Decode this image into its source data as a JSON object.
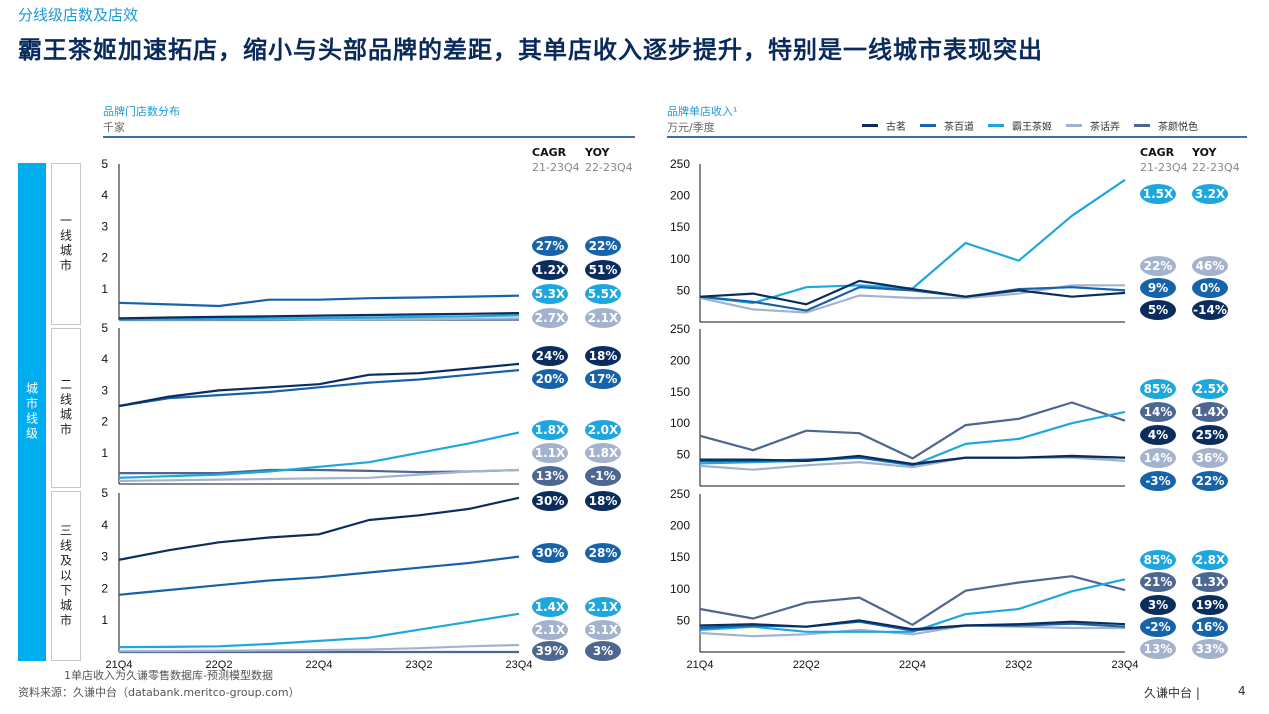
{
  "section_label": "分线级店数及店效",
  "title": "霸王茶姬加速拓店，缩小与头部品牌的差距，其单店收入逐步提升，特别是一线城市表现突出",
  "city_tier_label": "城市线级",
  "tiers": [
    "一线城市",
    "二线城市",
    "三线及以下城市"
  ],
  "left_panel": {
    "title": "品牌门店数分布",
    "unit": "千家"
  },
  "right_panel": {
    "title": "品牌单店收入¹",
    "unit": "万元/季度"
  },
  "metric_headers": {
    "cagr": "CAGR",
    "cagr_period": "21-23Q4",
    "yoy": "YOY",
    "yoy_period": "22-23Q4"
  },
  "legend": [
    {
      "name": "古茗",
      "color": "#0b2d5e"
    },
    {
      "name": "茶百道",
      "color": "#1763aa"
    },
    {
      "name": "霸王茶姬",
      "color": "#1ea7df"
    },
    {
      "name": "茶话弄",
      "color": "#a4b3cd"
    },
    {
      "name": "茶颜悦色",
      "color": "#4d6790"
    }
  ],
  "colors": {
    "accent": "#00aeef",
    "title": "#0a2a5c",
    "rule": "#3e6fa8"
  },
  "footnote": "1单店收入为久谦零售数据库-预测模型数据",
  "source": "资料来源：久谦中台（databank.meritco-group.com）",
  "footer_brand": "久谦中台",
  "page_number": "4",
  "chart_data": [
    {
      "type": "line",
      "panel": "store-count",
      "tier": "一线城市",
      "ylim": [
        0,
        5
      ],
      "yticks": [
        1,
        2,
        3,
        4,
        5
      ],
      "x": [
        "21Q4",
        "22Q1",
        "22Q2",
        "22Q3",
        "22Q4",
        "23Q1",
        "23Q2",
        "23Q3",
        "23Q4"
      ],
      "series": [
        {
          "name": "古茗",
          "values": [
            0.05,
            0.08,
            0.1,
            0.12,
            0.14,
            0.16,
            0.18,
            0.2,
            0.22
          ]
        },
        {
          "name": "茶百道",
          "values": [
            0.55,
            0.5,
            0.45,
            0.65,
            0.65,
            0.7,
            0.72,
            0.75,
            0.78
          ]
        },
        {
          "name": "霸王茶姬",
          "values": [
            0.02,
            0.03,
            0.04,
            0.05,
            0.06,
            0.08,
            0.1,
            0.12,
            0.15
          ]
        },
        {
          "name": "茶话弄",
          "values": [
            0.01,
            0.01,
            0.02,
            0.02,
            0.02,
            0.03,
            0.03,
            0.04,
            0.05
          ]
        },
        {
          "name": "茶颜悦色",
          "values": [
            0.0,
            0.0,
            0.0,
            0.0,
            0.01,
            0.01,
            0.01,
            0.01,
            0.01
          ]
        }
      ],
      "badges": [
        {
          "brand": "茶百道",
          "cagr": "27%",
          "yoy": "22%"
        },
        {
          "brand": "古茗",
          "cagr": "1.2X",
          "yoy": "51%"
        },
        {
          "brand": "霸王茶姬",
          "cagr": "5.3X",
          "yoy": "5.5X"
        },
        {
          "brand": "茶话弄",
          "cagr": "2.7X",
          "yoy": "2.1X"
        }
      ]
    },
    {
      "type": "line",
      "panel": "store-count",
      "tier": "二线城市",
      "ylim": [
        0,
        5
      ],
      "yticks": [
        1,
        2,
        3,
        4,
        5
      ],
      "x": [
        "21Q4",
        "22Q1",
        "22Q2",
        "22Q3",
        "22Q4",
        "23Q1",
        "23Q2",
        "23Q3",
        "23Q4"
      ],
      "series": [
        {
          "name": "古茗",
          "values": [
            2.5,
            2.8,
            3.0,
            3.1,
            3.2,
            3.5,
            3.55,
            3.7,
            3.85
          ]
        },
        {
          "name": "茶百道",
          "values": [
            2.5,
            2.75,
            2.85,
            2.95,
            3.1,
            3.25,
            3.35,
            3.5,
            3.65
          ]
        },
        {
          "name": "霸王茶姬",
          "values": [
            0.2,
            0.25,
            0.3,
            0.4,
            0.55,
            0.7,
            1.0,
            1.3,
            1.65
          ]
        },
        {
          "name": "茶话弄",
          "values": [
            0.1,
            0.12,
            0.14,
            0.16,
            0.18,
            0.2,
            0.3,
            0.4,
            0.45
          ]
        },
        {
          "name": "茶颜悦色",
          "values": [
            0.35,
            0.35,
            0.35,
            0.45,
            0.45,
            0.42,
            0.38,
            0.4,
            0.45
          ]
        }
      ],
      "badges": [
        {
          "brand": "古茗",
          "cagr": "24%",
          "yoy": "18%"
        },
        {
          "brand": "茶百道",
          "cagr": "20%",
          "yoy": "17%"
        },
        {
          "brand": "霸王茶姬",
          "cagr": "1.8X",
          "yoy": "2.0X"
        },
        {
          "brand": "茶话弄",
          "cagr": "1.1X",
          "yoy": "1.8X"
        },
        {
          "brand": "茶颜悦色",
          "cagr": "13%",
          "yoy": "-1%"
        }
      ]
    },
    {
      "type": "line",
      "panel": "store-count",
      "tier": "三线及以下城市",
      "ylim": [
        0,
        5
      ],
      "yticks": [
        1,
        2,
        3,
        4,
        5
      ],
      "x": [
        "21Q4",
        "22Q1",
        "22Q2",
        "22Q3",
        "22Q4",
        "23Q1",
        "23Q2",
        "23Q3",
        "23Q4"
      ],
      "series": [
        {
          "name": "古茗",
          "values": [
            2.9,
            3.2,
            3.45,
            3.6,
            3.7,
            4.15,
            4.3,
            4.5,
            4.85
          ]
        },
        {
          "name": "茶百道",
          "values": [
            1.8,
            1.95,
            2.1,
            2.25,
            2.35,
            2.5,
            2.65,
            2.8,
            3.0
          ]
        },
        {
          "name": "霸王茶姬",
          "values": [
            0.15,
            0.16,
            0.18,
            0.25,
            0.35,
            0.45,
            0.7,
            0.95,
            1.2
          ]
        },
        {
          "name": "茶话弄",
          "values": [
            0.03,
            0.03,
            0.04,
            0.05,
            0.06,
            0.08,
            0.12,
            0.18,
            0.22
          ]
        },
        {
          "name": "茶颜悦色",
          "values": [
            0.0,
            0.0,
            0.0,
            0.0,
            0.0,
            0.0,
            0.0,
            0.0,
            0.0
          ]
        }
      ],
      "badges": [
        {
          "brand": "古茗",
          "cagr": "30%",
          "yoy": "18%"
        },
        {
          "brand": "茶百道",
          "cagr": "30%",
          "yoy": "28%"
        },
        {
          "brand": "霸王茶姬",
          "cagr": "1.4X",
          "yoy": "2.1X"
        },
        {
          "brand": "茶话弄",
          "cagr": "2.1X",
          "yoy": "3.1X"
        },
        {
          "brand": "茶颜悦色",
          "cagr": "39%",
          "yoy": "3%"
        }
      ]
    },
    {
      "type": "line",
      "panel": "revenue-per-store",
      "tier": "一线城市",
      "ylim": [
        0,
        250
      ],
      "yticks": [
        50,
        100,
        150,
        200,
        250
      ],
      "x": [
        "21Q4",
        "22Q1",
        "22Q2",
        "22Q3",
        "22Q4",
        "23Q1",
        "23Q2",
        "23Q3",
        "23Q4"
      ],
      "series": [
        {
          "name": "古茗",
          "values": [
            40,
            45,
            28,
            65,
            52,
            40,
            50,
            40,
            46
          ]
        },
        {
          "name": "茶百道",
          "values": [
            40,
            32,
            18,
            55,
            50,
            40,
            52,
            55,
            50
          ]
        },
        {
          "name": "霸王茶姬",
          "values": [
            40,
            30,
            55,
            58,
            53,
            125,
            97,
            168,
            225
          ]
        },
        {
          "name": "茶话弄",
          "values": [
            38,
            20,
            15,
            42,
            38,
            38,
            45,
            58,
            58
          ]
        }
      ],
      "badges": [
        {
          "brand": "霸王茶姬",
          "cagr": "1.5X",
          "yoy": "3.2X"
        },
        {
          "brand": "茶话弄",
          "cagr": "22%",
          "yoy": "46%"
        },
        {
          "brand": "茶百道",
          "cagr": "9%",
          "yoy": "0%"
        },
        {
          "brand": "古茗",
          "cagr": "5%",
          "yoy": "-14%"
        }
      ]
    },
    {
      "type": "line",
      "panel": "revenue-per-store",
      "tier": "二线城市",
      "ylim": [
        0,
        250
      ],
      "yticks": [
        50,
        100,
        150,
        200,
        250
      ],
      "x": [
        "21Q4",
        "22Q1",
        "22Q2",
        "22Q3",
        "22Q4",
        "23Q1",
        "23Q2",
        "23Q3",
        "23Q4"
      ],
      "series": [
        {
          "name": "古茗",
          "values": [
            42,
            42,
            40,
            48,
            35,
            45,
            45,
            48,
            45
          ]
        },
        {
          "name": "茶百道",
          "values": [
            40,
            40,
            42,
            45,
            34,
            45,
            45,
            47,
            45
          ]
        },
        {
          "name": "霸王茶姬",
          "values": [
            36,
            38,
            40,
            45,
            33,
            67,
            75,
            100,
            118
          ]
        },
        {
          "name": "茶话弄",
          "values": [
            32,
            26,
            33,
            38,
            30,
            45,
            45,
            45,
            40
          ]
        },
        {
          "name": "茶颜悦色",
          "values": [
            80,
            57,
            88,
            84,
            44,
            97,
            107,
            133,
            104
          ]
        }
      ],
      "badges": [
        {
          "brand": "霸王茶姬",
          "cagr": "85%",
          "yoy": "2.5X"
        },
        {
          "brand": "茶颜悦色",
          "cagr": "14%",
          "yoy": "1.4X"
        },
        {
          "brand": "古茗",
          "cagr": "4%",
          "yoy": "25%"
        },
        {
          "brand": "茶话弄",
          "cagr": "14%",
          "yoy": "36%"
        },
        {
          "brand": "茶百道",
          "cagr": "-3%",
          "yoy": "22%"
        }
      ]
    },
    {
      "type": "line",
      "panel": "revenue-per-store",
      "tier": "三线及以下城市",
      "ylim": [
        0,
        250
      ],
      "yticks": [
        50,
        100,
        150,
        200,
        250
      ],
      "x": [
        "21Q4",
        "22Q1",
        "22Q2",
        "22Q3",
        "22Q4",
        "23Q1",
        "23Q2",
        "23Q3",
        "23Q4"
      ],
      "series": [
        {
          "name": "古茗",
          "values": [
            42,
            44,
            40,
            50,
            36,
            42,
            44,
            48,
            44
          ]
        },
        {
          "name": "茶百道",
          "values": [
            38,
            42,
            40,
            48,
            34,
            42,
            42,
            45,
            40
          ]
        },
        {
          "name": "霸王茶姬",
          "values": [
            35,
            40,
            32,
            32,
            32,
            60,
            68,
            96,
            115
          ]
        },
        {
          "name": "茶话弄",
          "values": [
            30,
            25,
            28,
            35,
            28,
            42,
            40,
            38,
            38
          ]
        },
        {
          "name": "茶颜悦色",
          "values": [
            68,
            53,
            78,
            86,
            43,
            97,
            110,
            120,
            98
          ]
        }
      ],
      "badges": [
        {
          "brand": "霸王茶姬",
          "cagr": "85%",
          "yoy": "2.8X"
        },
        {
          "brand": "茶颜悦色",
          "cagr": "21%",
          "yoy": "1.3X"
        },
        {
          "brand": "古茗",
          "cagr": "3%",
          "yoy": "19%"
        },
        {
          "brand": "茶百道",
          "cagr": "-2%",
          "yoy": "16%"
        },
        {
          "brand": "茶话弄",
          "cagr": "13%",
          "yoy": "33%"
        }
      ]
    }
  ],
  "x_tick_labels": [
    "21Q4",
    "22Q2",
    "22Q4",
    "23Q2",
    "23Q4"
  ]
}
